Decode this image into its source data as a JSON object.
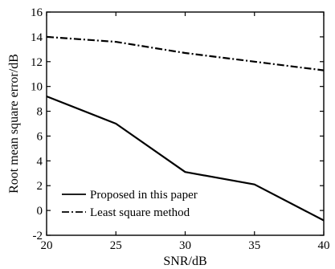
{
  "chart_data": {
    "type": "line",
    "title": "",
    "xlabel": "SNR/dB",
    "ylabel": "Root mean square error/dB",
    "xlim": [
      20,
      40
    ],
    "ylim": [
      -2,
      16
    ],
    "xticks": [
      20,
      25,
      30,
      35,
      40
    ],
    "yticks": [
      -2,
      0,
      2,
      4,
      6,
      8,
      10,
      12,
      14,
      16
    ],
    "grid": false,
    "legend_position": "bottom-left",
    "series": [
      {
        "name": "Proposed in this paper",
        "style": "solid",
        "color": "#000000",
        "x": [
          20,
          25,
          30,
          35,
          40
        ],
        "y": [
          9.2,
          7.0,
          3.1,
          2.1,
          -0.8
        ]
      },
      {
        "name": "Least square method",
        "style": "dash-dot",
        "color": "#000000",
        "x": [
          20,
          25,
          30,
          35,
          40
        ],
        "y": [
          14.0,
          13.6,
          12.7,
          12.0,
          11.3
        ]
      }
    ]
  }
}
